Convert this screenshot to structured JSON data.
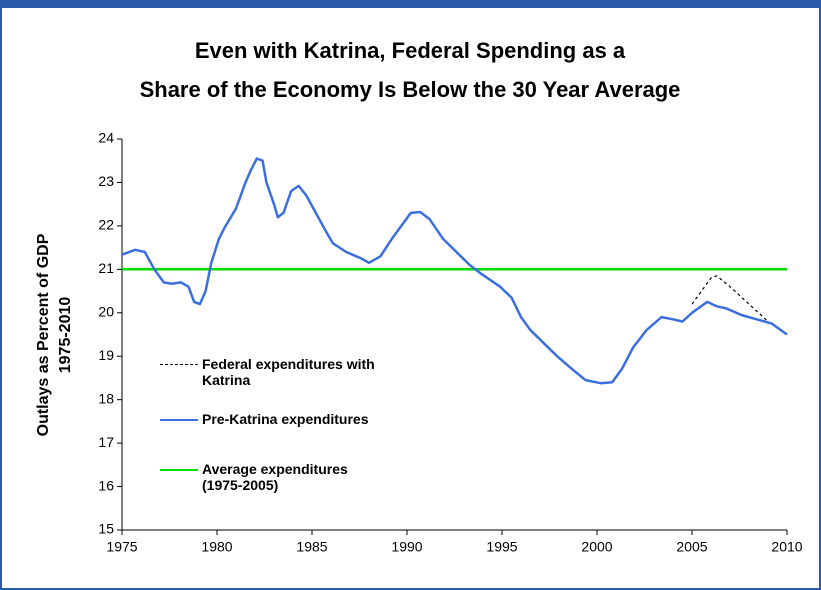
{
  "chart_data": {
    "type": "line",
    "title": "Even with Katrina, Federal Spending as a",
    "subtitle": "Share of the Economy Is Below the 30 Year Average",
    "y_label": "Outlays as Percent of GDP",
    "y_label_2": "1975-2010",
    "xlim": [
      1975,
      2010
    ],
    "xticks": [
      1975,
      1980,
      1985,
      1990,
      1995,
      2000,
      2005,
      2010
    ],
    "ylim": [
      15,
      24
    ],
    "yticks": [
      15,
      16,
      17,
      18,
      19,
      20,
      21,
      22,
      23,
      24
    ],
    "series": [
      {
        "name": "Federal expenditures with Katrina",
        "color": "#000000",
        "dash": true,
        "x": [
          2005.0,
          2005.5,
          2006.0,
          2006.3,
          2007.0,
          2008.0,
          2009.0,
          2010.0
        ],
        "values": [
          20.2,
          20.5,
          20.8,
          20.85,
          20.6,
          20.2,
          19.8,
          19.5
        ]
      },
      {
        "name": "Pre-Katrina expenditures",
        "color": "#3b6fe0",
        "dash": false,
        "x": [
          1975.0,
          1975.7,
          1976.2,
          1976.7,
          1977.2,
          1977.6,
          1978.1,
          1978.5,
          1978.8,
          1979.1,
          1979.4,
          1979.7,
          1980.1,
          1980.4,
          1981.0,
          1981.5,
          1981.8,
          1982.1,
          1982.4,
          1982.6,
          1983.0,
          1983.2,
          1983.5,
          1983.9,
          1984.3,
          1984.7,
          1985.2,
          1985.7,
          1986.1,
          1986.8,
          1987.6,
          1988.0,
          1988.6,
          1989.2,
          1989.7,
          1990.2,
          1990.7,
          1991.2,
          1991.9,
          1992.6,
          1993.3,
          1993.9,
          1994.9,
          1995.5,
          1996.0,
          1996.5,
          1997.2,
          1997.9,
          1998.7,
          1999.4,
          2000.2,
          2000.8,
          2001.3,
          2001.9,
          2002.6,
          2003.4,
          2004.0,
          2004.5,
          2005.0,
          2005.8,
          2006.3,
          2006.8,
          2007.6,
          2008.4,
          2009.2,
          2010.0
        ],
        "values": [
          21.34,
          21.45,
          21.4,
          21.0,
          20.7,
          20.67,
          20.7,
          20.6,
          20.25,
          20.2,
          20.5,
          21.15,
          21.7,
          21.96,
          22.4,
          23.0,
          23.3,
          23.55,
          23.5,
          23.0,
          22.5,
          22.2,
          22.3,
          22.8,
          22.92,
          22.7,
          22.3,
          21.9,
          21.6,
          21.4,
          21.25,
          21.15,
          21.3,
          21.7,
          22.0,
          22.3,
          22.32,
          22.15,
          21.7,
          21.4,
          21.1,
          20.9,
          20.6,
          20.35,
          19.9,
          19.6,
          19.3,
          19.0,
          18.7,
          18.45,
          18.38,
          18.4,
          18.7,
          19.2,
          19.6,
          19.9,
          19.85,
          19.8,
          20.0,
          20.25,
          20.15,
          20.1,
          19.95,
          19.85,
          19.75,
          19.5
        ]
      },
      {
        "name": "Average expenditures (1975-2005)",
        "color": "#00dd00",
        "dash": false,
        "x": [
          1975,
          2010
        ],
        "values": [
          21,
          21
        ]
      }
    ]
  }
}
